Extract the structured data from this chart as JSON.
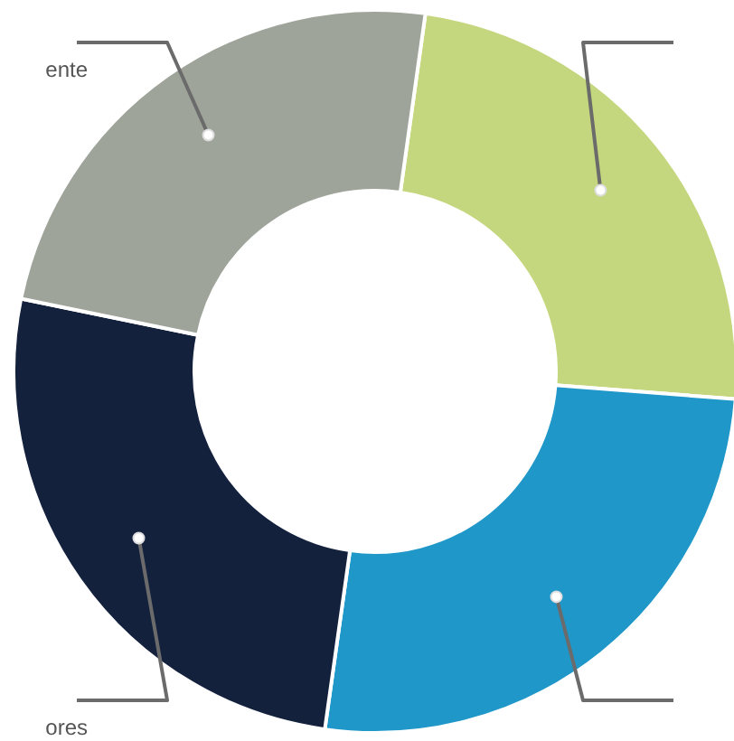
{
  "chart_data": {
    "type": "donut",
    "categories": [
      null,
      null,
      "ores",
      "ente"
    ],
    "values": [
      24,
      26,
      26,
      24
    ],
    "colors": [
      "#c5d77e",
      "#1f97c8",
      "#14213d",
      "#9ea49a"
    ]
  }
}
